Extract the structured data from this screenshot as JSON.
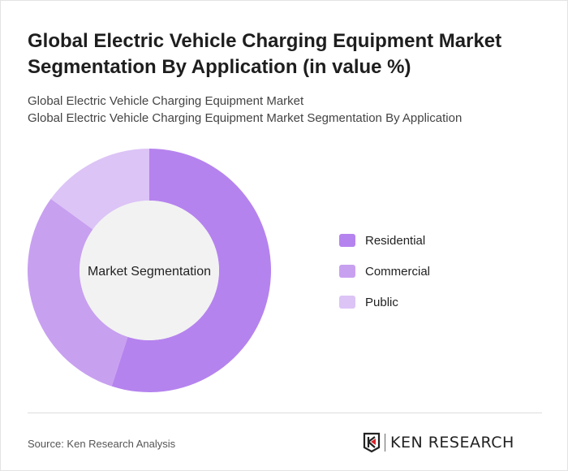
{
  "header": {
    "title": "Global Electric Vehicle Charging Equipment Market Segmentation By Application (in value %)",
    "subtitle_1": "Global Electric Vehicle Charging Equipment Market",
    "subtitle_2": "Global Electric Vehicle Charging Equipment Market Segmentation By Application"
  },
  "chart_data": {
    "type": "pie",
    "donut": true,
    "center_label": "Market Segmentation",
    "categories": [
      "Residential",
      "Commercial",
      "Public"
    ],
    "values": [
      55,
      30,
      15
    ],
    "colors": [
      "#b583ee",
      "#c8a0f0",
      "#dcc4f6"
    ],
    "legend_position": "right"
  },
  "footer": {
    "source": "Source: Ken Research Analysis",
    "logo_text": "KEN RESEARCH"
  }
}
